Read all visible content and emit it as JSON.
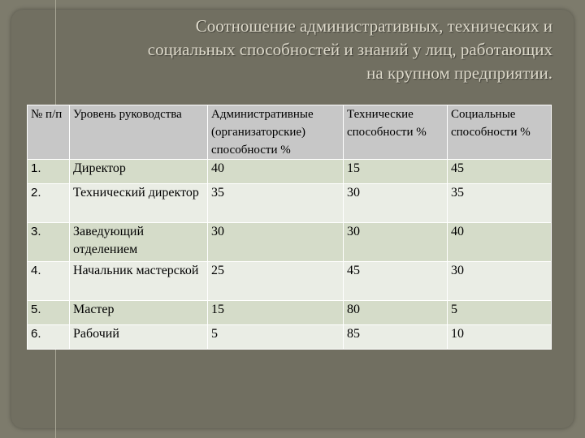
{
  "title": {
    "line1": "Соотношение административных, технических и",
    "line2": "социальных способностей и знаний у лиц, работающих",
    "line3": "на крупном предприятии."
  },
  "table": {
    "headers": [
      "№ п/п",
      "Уровень руководства",
      "Административные (организаторские) способности %",
      "Технические способности %",
      "Социальные способности %"
    ],
    "rows": [
      [
        "1.",
        "Директор",
        "40",
        "15",
        "45"
      ],
      [
        "2.",
        "Технический директор",
        "35",
        "30",
        "35"
      ],
      [
        "3.",
        "Заведующий отделением",
        "30",
        "30",
        "40"
      ],
      [
        "4.",
        "Начальник мастерской",
        "25",
        "45",
        "30"
      ],
      [
        "5.",
        "Мастер",
        "15",
        "80",
        "5"
      ],
      [
        "6.",
        "Рабочий",
        "5",
        "85",
        "10"
      ]
    ]
  }
}
